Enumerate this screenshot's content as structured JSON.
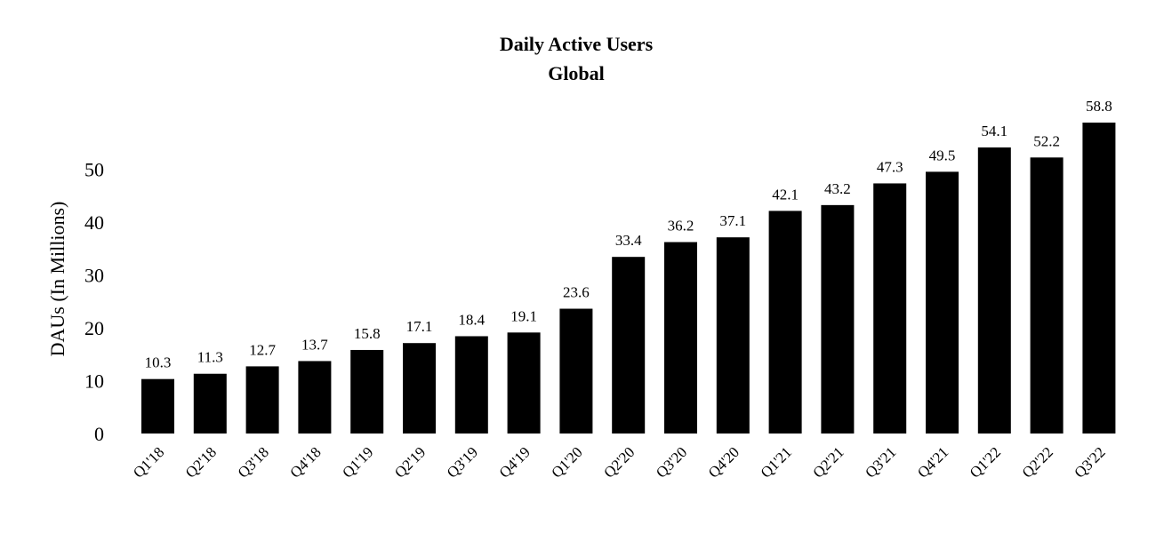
{
  "chart_data": {
    "type": "bar",
    "title": "Daily Active Users",
    "subtitle": "Global",
    "xlabel": "",
    "ylabel": "DAUs (In Millions)",
    "ylim": [
      0,
      58.8
    ],
    "yticks": [
      "0",
      "10",
      "20",
      "30",
      "40",
      "50"
    ],
    "grid": false,
    "legend": "none",
    "bar_color": "#000000",
    "categories": [
      "Q1'18",
      "Q2'18",
      "Q3'18",
      "Q4'18",
      "Q1'19",
      "Q2'19",
      "Q3'19",
      "Q4'19",
      "Q1'20",
      "Q2'20",
      "Q3'20",
      "Q4'20",
      "Q1'21",
      "Q2'21",
      "Q3'21",
      "Q4'21",
      "Q1'22",
      "Q2'22",
      "Q3'22"
    ],
    "values": [
      10.3,
      11.3,
      12.7,
      13.7,
      15.8,
      17.1,
      18.4,
      19.1,
      23.6,
      33.4,
      36.2,
      37.1,
      42.1,
      43.2,
      47.3,
      49.5,
      54.1,
      52.2,
      58.8
    ],
    "data_labels": [
      "10.3",
      "11.3",
      "12.7",
      "13.7",
      "15.8",
      "17.1",
      "18.4",
      "19.1",
      "23.6",
      "33.4",
      "36.2",
      "37.1",
      "42.1",
      "43.2",
      "47.3",
      "49.5",
      "54.1",
      "52.2",
      "58.8"
    ]
  }
}
